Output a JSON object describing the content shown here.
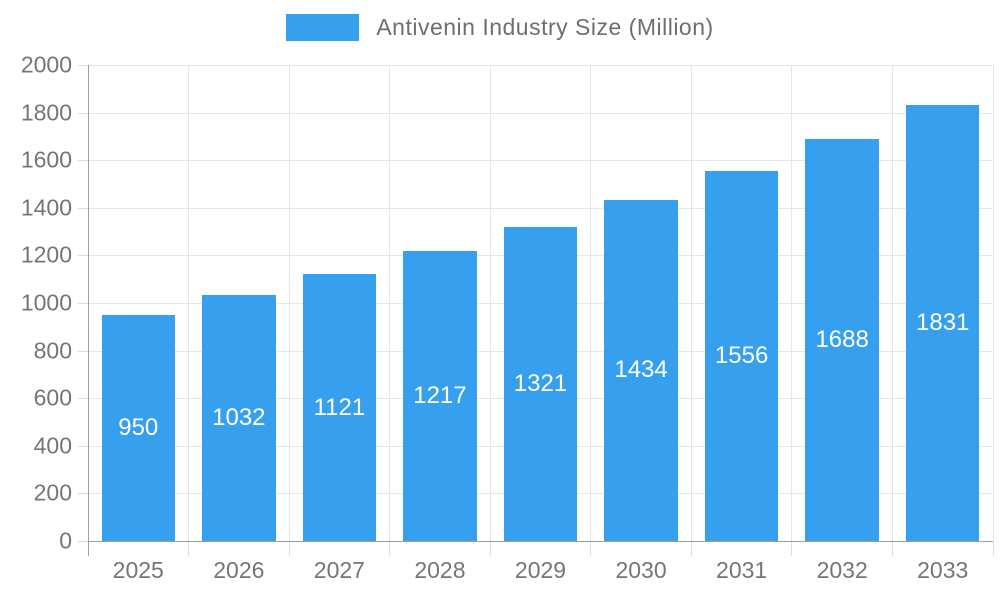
{
  "legend": {
    "label": "Antivenin Industry Size (Million)",
    "swatch_icon": "legend-swatch-blue"
  },
  "chart_data": {
    "type": "bar",
    "title": "Antivenin Industry Size (Million)",
    "categories": [
      "2025",
      "2026",
      "2027",
      "2028",
      "2029",
      "2030",
      "2031",
      "2032",
      "2033"
    ],
    "values": [
      950,
      1032,
      1121,
      1217,
      1321,
      1434,
      1556,
      1688,
      1831
    ],
    "value_labels": [
      "950",
      "1032",
      "1121",
      "1217",
      "1321",
      "1434",
      "1556",
      "1688",
      "1831"
    ],
    "xlabel": "",
    "ylabel": "",
    "ylim": [
      0,
      2000
    ],
    "ytick_step": 200,
    "ytick_labels": [
      "0",
      "200",
      "400",
      "600",
      "800",
      "1000",
      "1200",
      "1400",
      "1600",
      "1800",
      "2000"
    ],
    "grid": true,
    "legend_position": "top",
    "value_label_position": "center-inside"
  },
  "colors": {
    "bar": "#36A0EE",
    "bar_value_text": "#ffffff",
    "axis_label": "#757575",
    "legend_text": "#6e6e6e",
    "gridline": "#e6e6e6",
    "axis_line": "#9e9e9e",
    "background": "#ffffff"
  }
}
